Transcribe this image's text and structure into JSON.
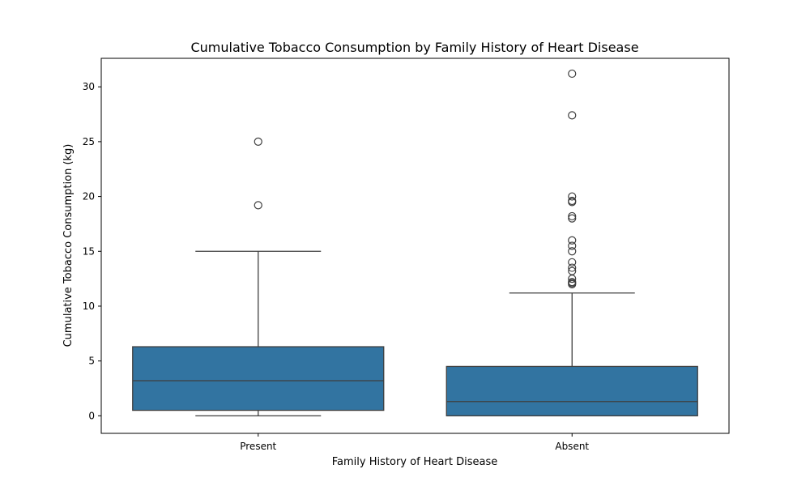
{
  "chart_data": {
    "type": "box",
    "title": "Cumulative Tobacco Consumption by Family History of Heart Disease",
    "xlabel": "Family History of Heart Disease",
    "ylabel": "Cumulative Tobacco Consumption (kg)",
    "ylim": [
      -1.6,
      32.6
    ],
    "yticks": [
      0,
      5,
      10,
      15,
      20,
      25,
      30
    ],
    "grid": false,
    "box_color": "#3274a1",
    "line_color": "#3f3f3f",
    "categories": [
      "Present",
      "Absent"
    ],
    "boxes": [
      {
        "category": "Present",
        "whisker_low": 0,
        "q1": 0.5,
        "median": 3.2,
        "q3": 6.3,
        "whisker_high": 15.0,
        "outliers": [
          25.0,
          19.2
        ]
      },
      {
        "category": "Absent",
        "whisker_low": 0,
        "q1": 0,
        "median": 1.3,
        "q3": 4.5,
        "whisker_high": 11.2,
        "outliers": [
          31.2,
          27.4,
          20.0,
          19.6,
          19.5,
          18.2,
          18.0,
          16.0,
          15.5,
          15.0,
          14.0,
          13.5,
          13.2,
          12.5,
          12.2,
          12.1,
          12.0
        ]
      }
    ]
  }
}
